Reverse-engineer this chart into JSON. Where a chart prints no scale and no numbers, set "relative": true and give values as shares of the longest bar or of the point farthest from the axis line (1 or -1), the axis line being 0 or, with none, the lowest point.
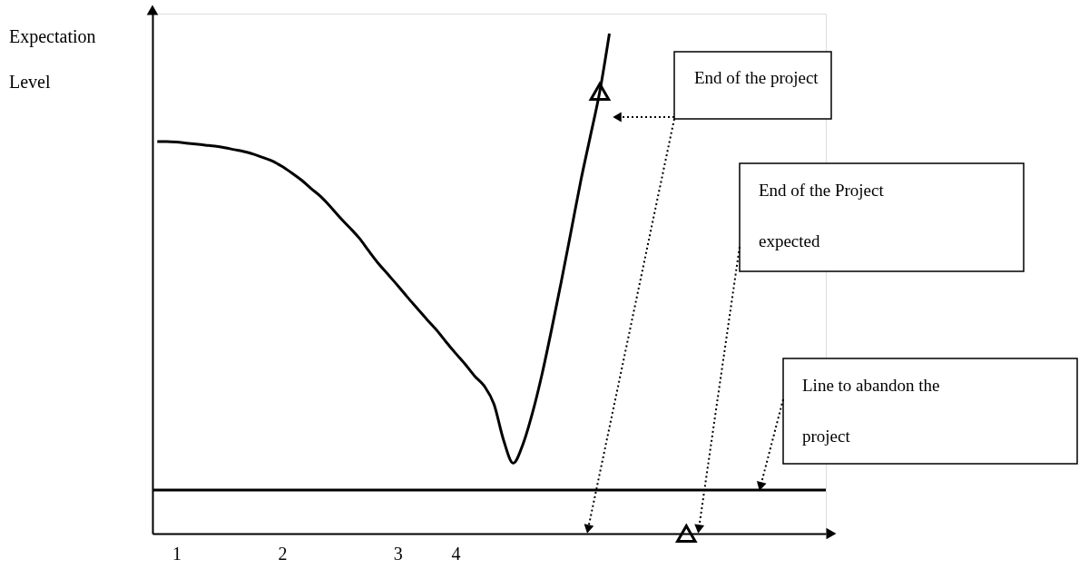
{
  "chart_data": {
    "type": "line",
    "ylabel": "Expectation Level",
    "relative": true,
    "categories": [
      null,
      null,
      "1",
      null,
      null,
      null,
      null,
      null,
      null,
      null,
      null,
      null,
      null,
      "2",
      null,
      null,
      null,
      null,
      null,
      null,
      null,
      null,
      null,
      null,
      null,
      "3",
      null,
      null,
      null,
      null,
      null,
      "4",
      null,
      null,
      null,
      null,
      null,
      null,
      null,
      null,
      null,
      null,
      null,
      null,
      null,
      null,
      null,
      null,
      null,
      null,
      null,
      null,
      null,
      null,
      null,
      null,
      null,
      null,
      null,
      null,
      null,
      null,
      null,
      null,
      null,
      null,
      null,
      null,
      null,
      null
    ],
    "line_style": "solid",
    "series": [
      {
        "color": "#000000",
        "marker": "none",
        "values": [
          0.784,
          0.784,
          0.783,
          0.781,
          0.779,
          0.777,
          0.775,
          0.772,
          0.768,
          0.764,
          0.759,
          0.752,
          0.745,
          0.734,
          0.721,
          0.707,
          0.69,
          0.674,
          0.654,
          0.632,
          0.612,
          0.591,
          0.565,
          0.54,
          0.518,
          0.496,
          0.473,
          0.451,
          0.429,
          0.408,
          0.384,
          0.361,
          0.339,
          0.315,
          0.295,
          0.259,
          0.187,
          0.141,
          0.178,
          0.241,
          0.319,
          0.409,
          0.504,
          0.603,
          0.703,
          0.793,
          0.884,
          1.0,
          null,
          null,
          null,
          null,
          null,
          null,
          null,
          null,
          null,
          null,
          null,
          null,
          null,
          null,
          null,
          null,
          null,
          null,
          null,
          null,
          null,
          null
        ]
      },
      {
        "type": "scatter",
        "marker": "triangle",
        "color": "#000000",
        "values": [
          null,
          null,
          null,
          null,
          null,
          null,
          null,
          null,
          null,
          null,
          null,
          null,
          null,
          null,
          null,
          null,
          null,
          null,
          null,
          null,
          null,
          null,
          null,
          null,
          null,
          null,
          null,
          null,
          null,
          null,
          null,
          null,
          null,
          null,
          null,
          null,
          null,
          null,
          null,
          null,
          null,
          null,
          null,
          null,
          null,
          null,
          0.884,
          null,
          null,
          null,
          null,
          null,
          null,
          null,
          null,
          0,
          null,
          null,
          null,
          null,
          null,
          null,
          null,
          null,
          null,
          null,
          null,
          null,
          null,
          null
        ]
      }
    ],
    "ref_lines": [
      {
        "axis": "y",
        "value": 0.087,
        "label": "Line to abandon the project",
        "color": "#000000"
      }
    ],
    "annotations": [
      "End of the project",
      "End of the Project expected"
    ]
  }
}
